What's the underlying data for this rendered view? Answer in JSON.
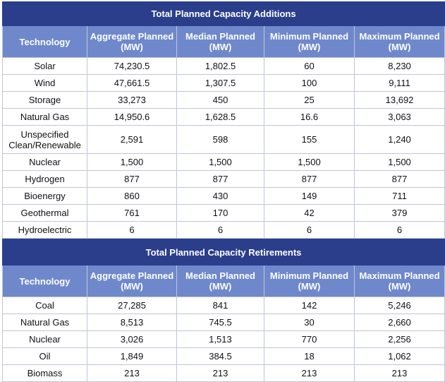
{
  "additions": {
    "title": "Total Planned Capacity Additions",
    "headers": [
      "Technology",
      "Aggregate Planned (MW)",
      "Median Planned (MW)",
      "Minimum Planned (MW)",
      "Maximum Planned (MW)"
    ],
    "rows": [
      [
        "Solar",
        "74,230.5",
        "1,802.5",
        "60",
        "8,230"
      ],
      [
        "Wind",
        "47,661.5",
        "1,307.5",
        "100",
        "9,111"
      ],
      [
        "Storage",
        "33,273",
        "450",
        "25",
        "13,692"
      ],
      [
        "Natural Gas",
        "14,950.6",
        "1,628.5",
        "16.6",
        "3,063"
      ],
      [
        "Unspecified Clean/Renewable",
        "2,591",
        "598",
        "155",
        "1,240"
      ],
      [
        "Nuclear",
        "1,500",
        "1,500",
        "1,500",
        "1,500"
      ],
      [
        "Hydrogen",
        "877",
        "877",
        "877",
        "877"
      ],
      [
        "Bioenergy",
        "860",
        "430",
        "149",
        "711"
      ],
      [
        "Geothermal",
        "761",
        "170",
        "42",
        "379"
      ],
      [
        "Hydroelectric",
        "6",
        "6",
        "6",
        "6"
      ]
    ]
  },
  "retirements": {
    "title": "Total Planned Capacity Retirements",
    "headers": [
      "Technology",
      "Aggregate Planned (MW)",
      "Median Planned (MW)",
      "Minimum Planned (MW)",
      "Maximum Planned (MW)"
    ],
    "rows": [
      [
        "Coal",
        "27,285",
        "841",
        "142",
        "5,246"
      ],
      [
        "Natural Gas",
        "8,513",
        "745.5",
        "30",
        "2,660"
      ],
      [
        "Nuclear",
        "3,026",
        "1,513",
        "770",
        "2,256"
      ],
      [
        "Oil",
        "1,849",
        "384.5",
        "18",
        "1,062"
      ],
      [
        "Biomass",
        "213",
        "213",
        "213",
        "213"
      ]
    ]
  },
  "colors": {
    "title_bg": "#2a3e8c",
    "header_bg": "#6f88cc",
    "border": "#bfc6d6"
  }
}
